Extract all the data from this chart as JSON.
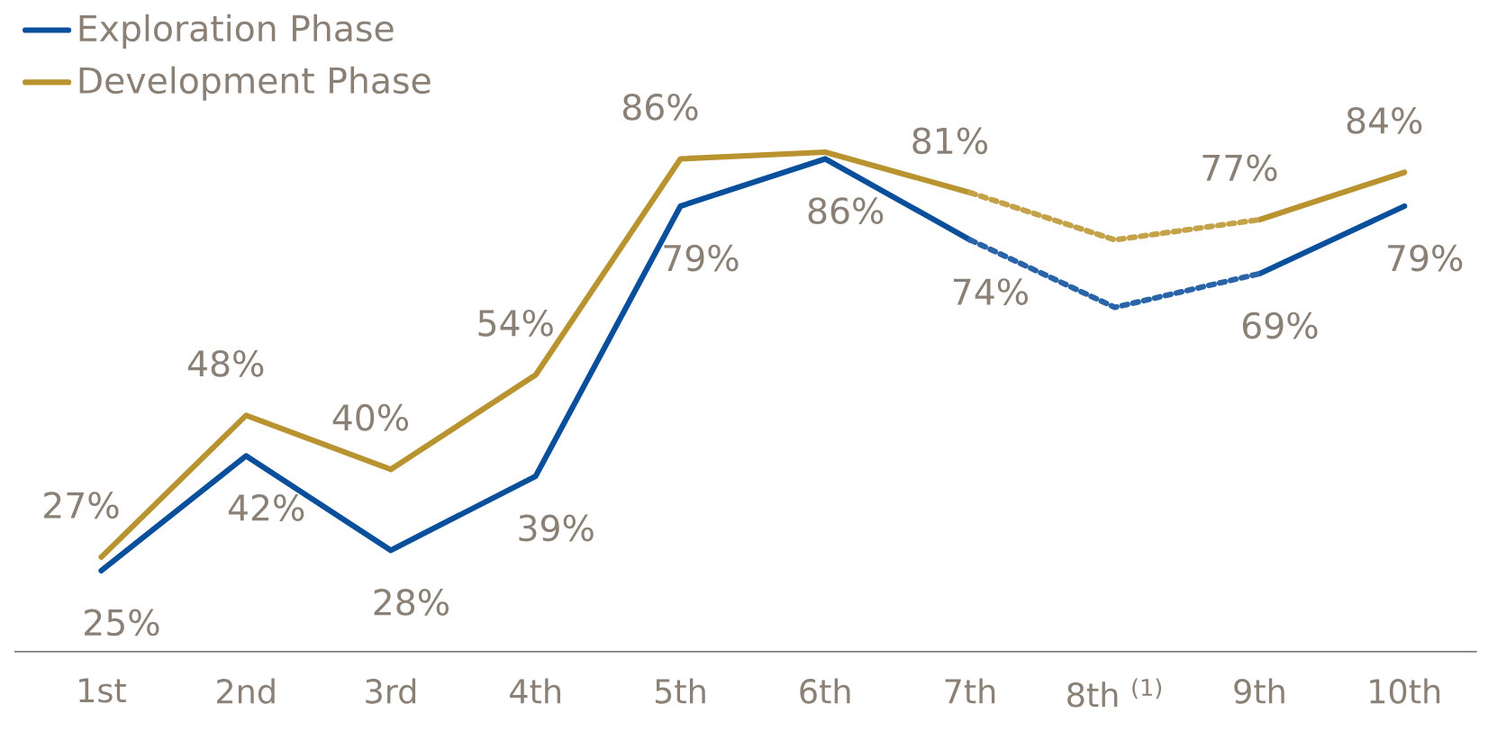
{
  "chart_data": {
    "type": "line",
    "categories": [
      "1st",
      "2nd",
      "3rd",
      "4th",
      "5th",
      "6th",
      "7th",
      "8th $^{(1)}$",
      "9th",
      "10th"
    ],
    "series": [
      {
        "name": "Exploration Phase",
        "color": "#0a4f9c",
        "line_style": "solid",
        "values": [
          25,
          42,
          28,
          39,
          79,
          86,
          74,
          null,
          69,
          79
        ],
        "value_labels": [
          "25%",
          "42%",
          "28%",
          "39%",
          "79%",
          "86%",
          "74%",
          null,
          "69%",
          "79%"
        ]
      },
      {
        "name": "Development Phase",
        "color": "#b8932f",
        "line_style": "solid",
        "values": [
          27,
          48,
          40,
          54,
          86,
          87,
          81,
          null,
          77,
          84
        ],
        "value_labels": [
          "27%",
          "48%",
          "40%",
          "54%",
          "86%",
          null,
          "81%",
          null,
          "77%",
          "84%"
        ]
      },
      {
        "color": "#2a64a8",
        "line_style": "dotted",
        "values": [
          null,
          null,
          null,
          null,
          null,
          null,
          74,
          64,
          69,
          null
        ]
      },
      {
        "color": "#c4a24a",
        "line_style": "dotted",
        "values": [
          null,
          null,
          null,
          null,
          null,
          null,
          81,
          74,
          77,
          null
        ]
      }
    ],
    "legend": "top left",
    "marker": "none"
  }
}
